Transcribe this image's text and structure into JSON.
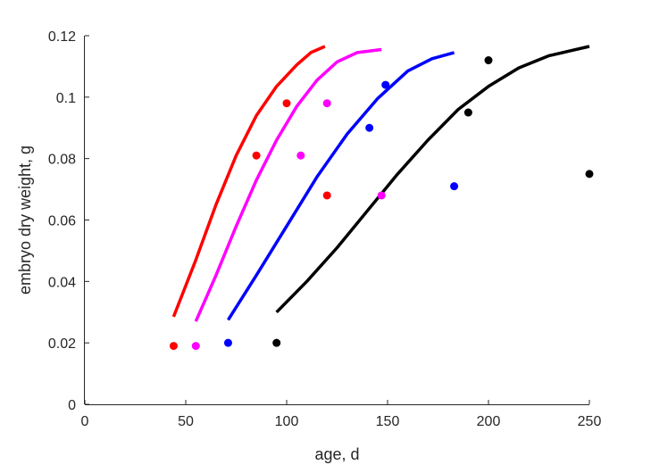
{
  "chart_data": {
    "type": "scatter",
    "xlabel": "age, d",
    "ylabel": "embryo dry weight, g",
    "xlim": [
      0,
      250
    ],
    "ylim": [
      0,
      0.12
    ],
    "xticks": [
      0,
      50,
      100,
      150,
      200,
      250
    ],
    "yticks": [
      0,
      0.02,
      0.04,
      0.06,
      0.08,
      0.1,
      0.12
    ],
    "xtick_labels": [
      "0",
      "50",
      "100",
      "150",
      "200",
      "250"
    ],
    "ytick_labels": [
      "0",
      "0.02",
      "0.04",
      "0.06",
      "0.08",
      "0.1",
      "0.12"
    ],
    "grid": false,
    "legend": "none",
    "series": [
      {
        "color": "#ff0000",
        "points": [
          [
            44,
            0.019
          ],
          [
            85,
            0.081
          ],
          [
            100,
            0.098
          ],
          [
            120,
            0.068
          ]
        ],
        "curve": [
          [
            44,
            0.0285
          ],
          [
            55,
            0.047
          ],
          [
            65,
            0.065
          ],
          [
            75,
            0.081
          ],
          [
            85,
            0.094
          ],
          [
            95,
            0.1035
          ],
          [
            105,
            0.1105
          ],
          [
            112,
            0.1145
          ],
          [
            119,
            0.1165
          ]
        ]
      },
      {
        "color": "#ff00ff",
        "points": [
          [
            55,
            0.019
          ],
          [
            107,
            0.081
          ],
          [
            120,
            0.098
          ],
          [
            147,
            0.068
          ]
        ],
        "curve": [
          [
            55,
            0.027
          ],
          [
            65,
            0.042
          ],
          [
            75,
            0.058
          ],
          [
            85,
            0.073
          ],
          [
            95,
            0.086
          ],
          [
            105,
            0.097
          ],
          [
            115,
            0.1055
          ],
          [
            125,
            0.1115
          ],
          [
            135,
            0.1145
          ],
          [
            147,
            0.1155
          ]
        ]
      },
      {
        "color": "#0000ff",
        "points": [
          [
            71,
            0.02
          ],
          [
            141,
            0.09
          ],
          [
            149,
            0.104
          ],
          [
            183,
            0.071
          ]
        ],
        "curve": [
          [
            71,
            0.0275
          ],
          [
            85,
            0.042
          ],
          [
            100,
            0.058
          ],
          [
            115,
            0.074
          ],
          [
            130,
            0.088
          ],
          [
            145,
            0.0995
          ],
          [
            160,
            0.1085
          ],
          [
            172,
            0.1125
          ],
          [
            183,
            0.1145
          ]
        ]
      },
      {
        "color": "#000000",
        "points": [
          [
            95,
            0.02
          ],
          [
            190,
            0.095
          ],
          [
            200,
            0.112
          ],
          [
            250,
            0.075
          ]
        ],
        "curve": [
          [
            95,
            0.03
          ],
          [
            110,
            0.04
          ],
          [
            125,
            0.051
          ],
          [
            140,
            0.063
          ],
          [
            155,
            0.075
          ],
          [
            170,
            0.086
          ],
          [
            185,
            0.096
          ],
          [
            200,
            0.1035
          ],
          [
            215,
            0.1095
          ],
          [
            230,
            0.1135
          ],
          [
            240,
            0.115
          ],
          [
            250,
            0.1165
          ]
        ]
      }
    ]
  }
}
